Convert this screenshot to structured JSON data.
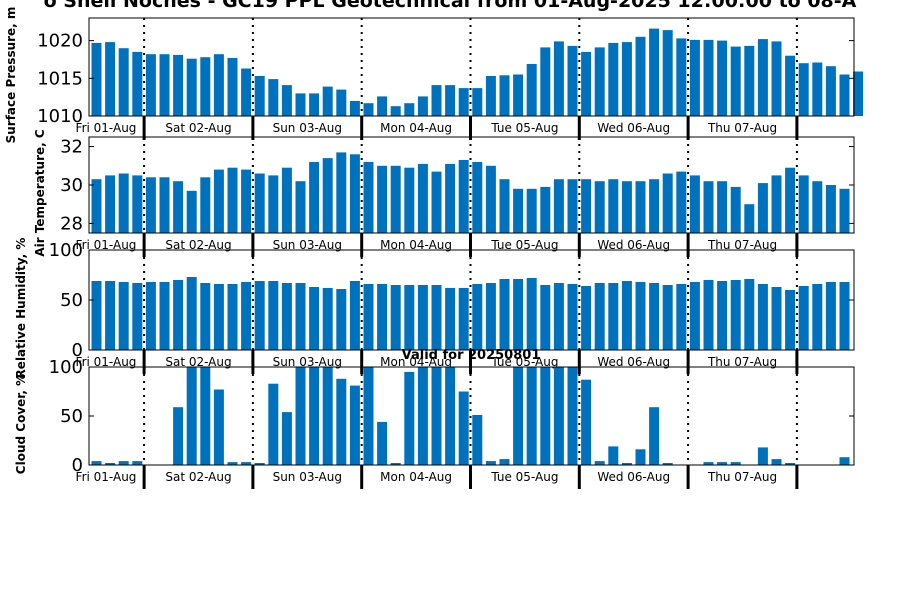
{
  "title": "o Shell Noches - GC19 PPL Geotechnical from 01-Aug-2025 12:00:00 to 08-A",
  "subtitle": "Valid for 20250801",
  "colors": {
    "bar": "#0072bd",
    "axis": "#000000",
    "background": "#ffffff"
  },
  "day_labels": [
    "Fri 01-Aug",
    "Sat 02-Aug",
    "Sun 03-Aug",
    "Mon 04-Aug",
    "Tue 05-Aug",
    "Wed 06-Aug",
    "Thu 07-Aug"
  ],
  "chart_data": [
    {
      "type": "bar",
      "ylabel": "Surface Pressure, m",
      "ylim": [
        1010,
        1023
      ],
      "yticks": [
        1010,
        1015,
        1020
      ],
      "values": [
        1019.7,
        1019.8,
        1019.0,
        1018.5,
        1018.2,
        1018.2,
        1018.1,
        1017.6,
        1017.8,
        1018.2,
        1017.7,
        1016.3,
        1015.3,
        1014.9,
        1014.1,
        1013.0,
        1013.0,
        1013.9,
        1013.5,
        1012.0,
        1011.7,
        1012.6,
        1011.3,
        1011.7,
        1012.6,
        1014.1,
        1014.1,
        1013.7,
        1013.7,
        1015.3,
        1015.4,
        1015.5,
        1016.9,
        1019.1,
        1019.9,
        1019.3,
        1018.5,
        1019.1,
        1019.7,
        1019.8,
        1020.5,
        1021.6,
        1021.4,
        1020.3,
        1020.1,
        1020.1,
        1020.0,
        1019.2,
        1019.3,
        1020.2,
        1019.9,
        1018.0,
        1017.0,
        1017.1,
        1016.6,
        1015.5,
        1015.9
      ]
    },
    {
      "type": "bar",
      "ylabel": "Air Temperature, C",
      "ylim": [
        27.5,
        32.5
      ],
      "yticks": [
        28,
        30,
        32
      ],
      "values": [
        30.3,
        30.5,
        30.6,
        30.5,
        30.4,
        30.4,
        30.2,
        29.7,
        30.4,
        30.8,
        30.9,
        30.8,
        30.6,
        30.5,
        30.9,
        30.2,
        31.2,
        31.4,
        31.7,
        31.6,
        31.2,
        31.0,
        31.0,
        30.9,
        31.1,
        30.7,
        31.1,
        31.3,
        31.2,
        31.0,
        30.3,
        29.8,
        29.8,
        29.9,
        30.3,
        30.3,
        30.3,
        30.2,
        30.3,
        30.2,
        30.2,
        30.3,
        30.6,
        30.7,
        30.5,
        30.2,
        30.2,
        29.9,
        29.0,
        30.1,
        30.5,
        30.9,
        30.5,
        30.2,
        30.0,
        29.8
      ]
    },
    {
      "type": "bar",
      "ylabel": "Relative Humidity, %",
      "ylim": [
        0,
        100
      ],
      "yticks": [
        0,
        50,
        100
      ],
      "values": [
        69,
        69,
        68,
        67,
        68,
        68,
        70,
        73,
        67,
        66,
        66,
        68,
        69,
        69,
        67,
        67,
        63,
        62,
        61,
        69,
        66,
        66,
        65,
        65,
        65,
        65,
        62,
        62,
        66,
        67,
        71,
        71,
        72,
        65,
        67,
        66,
        64,
        67,
        67,
        69,
        68,
        67,
        65,
        66,
        68,
        70,
        69,
        70,
        71,
        66,
        63,
        60,
        64,
        66,
        68,
        68
      ]
    },
    {
      "type": "bar",
      "ylabel": "Cloud Cover, %",
      "ylim": [
        0,
        100
      ],
      "yticks": [
        0,
        50,
        100
      ],
      "values": [
        4,
        2,
        4,
        4,
        0,
        0,
        59,
        100,
        100,
        77,
        3,
        3,
        2,
        83,
        54,
        100,
        100,
        100,
        88,
        81,
        100,
        44,
        2,
        95,
        100,
        100,
        100,
        75,
        51,
        4,
        6,
        100,
        100,
        100,
        100,
        100,
        87,
        4,
        19,
        2,
        16,
        59,
        2,
        0,
        0,
        3,
        3,
        3,
        0,
        18,
        6,
        2,
        0,
        0,
        0,
        8
      ]
    }
  ]
}
